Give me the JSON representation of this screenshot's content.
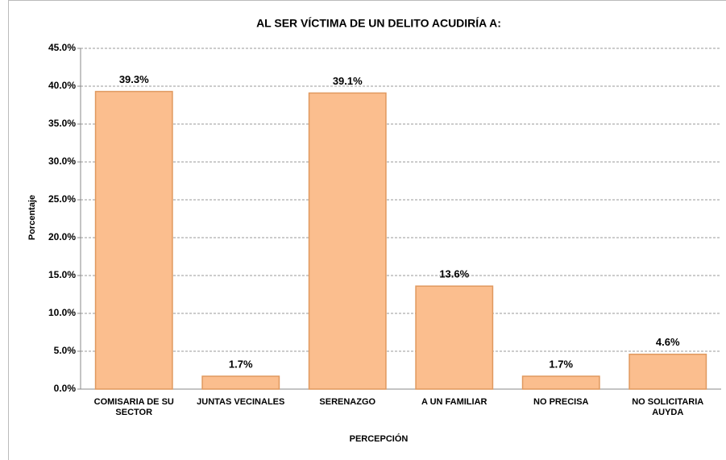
{
  "chart_data": {
    "type": "bar",
    "title": "AL SER VÍCTIMA DE UN DELITO ACUDIRÍA A:",
    "x_label": "PERCEPCIÓN",
    "y_label": "Porcentaje",
    "categories": [
      "COMISARIA DE SU SECTOR",
      "JUNTAS VECINALES",
      "SERENAZGO",
      "A UN FAMILIAR",
      "NO PRECISA",
      "NO SOLICITARIA AUYDA"
    ],
    "values": [
      39.3,
      1.7,
      39.1,
      13.6,
      1.7,
      4.6
    ],
    "value_labels": [
      "39.3%",
      "1.7%",
      "39.1%",
      "13.6%",
      "1.7%",
      "4.6%"
    ],
    "color": "#fbbe8e",
    "ylim": [
      0,
      45
    ],
    "yticks": [
      {
        "value": 0,
        "label": "0.0%"
      },
      {
        "value": 5,
        "label": "5.0%"
      },
      {
        "value": 10,
        "label": "10.0%"
      },
      {
        "value": 15,
        "label": "15.0%"
      },
      {
        "value": 20,
        "label": "20.0%"
      },
      {
        "value": 25,
        "label": "25.0%"
      },
      {
        "value": 30,
        "label": "30.0%"
      },
      {
        "value": 35,
        "label": "35.0%"
      },
      {
        "value": 40,
        "label": "40.0%"
      },
      {
        "value": 45,
        "label": "45.0%"
      }
    ],
    "grid": true
  }
}
